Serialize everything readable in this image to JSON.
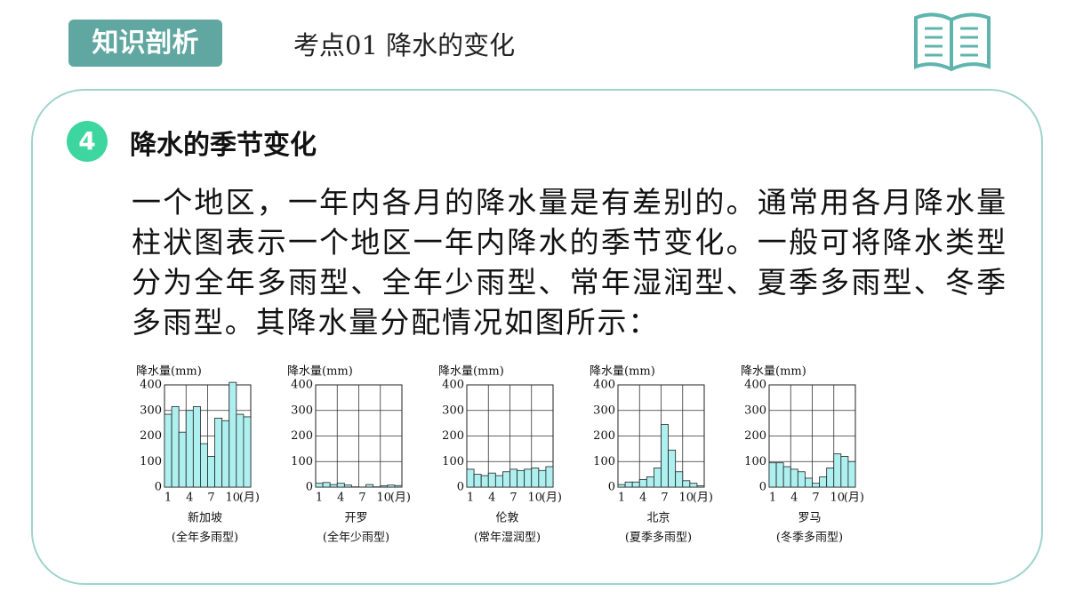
{
  "header": {
    "badge": "知识剖析",
    "title": "考点01 降水的变化"
  },
  "section": {
    "number": "4",
    "heading": "降水的季节变化",
    "paragraph": "一个地区，一年内各月的降水量是有差别的。通常用各月降水量柱状图表示一个地区一年内降水的季节变化。一般可将降水类型分为全年多雨型、全年少雨型、常年湿润型、夏季多雨型、冬季多雨型。其降水量分配情况如图所示："
  },
  "chart_data": [
    {
      "type": "bar",
      "y_label": "降水量(mm)",
      "x_unit": "(月)",
      "name": "新加坡",
      "subtitle": "(全年多雨型)",
      "categories": [
        1,
        null,
        null,
        4,
        null,
        null,
        7,
        null,
        null,
        10,
        null,
        null
      ],
      "values": [
        285,
        315,
        215,
        300,
        315,
        170,
        120,
        270,
        260,
        410,
        285,
        275
      ],
      "color": "#aef0f0",
      "ylim": [
        0,
        400
      ],
      "yticks": [
        0,
        100,
        200,
        300,
        400
      ],
      "grid": true
    },
    {
      "type": "bar",
      "y_label": "降水量(mm)",
      "x_unit": "(月)",
      "name": "开罗",
      "subtitle": "(全年少雨型)",
      "categories": [
        1,
        null,
        null,
        4,
        null,
        null,
        7,
        null,
        null,
        10,
        null,
        null
      ],
      "values": [
        15,
        18,
        10,
        15,
        8,
        1,
        0,
        10,
        1,
        5,
        8,
        6
      ],
      "color": "#aef0f0",
      "ylim": [
        0,
        400
      ],
      "yticks": [
        0,
        100,
        200,
        300,
        400
      ],
      "grid": true
    },
    {
      "type": "bar",
      "y_label": "降水量(mm)",
      "x_unit": "(月)",
      "name": "伦敦",
      "subtitle": "(常年湿润型)",
      "categories": [
        1,
        null,
        null,
        4,
        null,
        null,
        7,
        null,
        null,
        10,
        null,
        null
      ],
      "values": [
        70,
        50,
        45,
        55,
        45,
        60,
        70,
        65,
        70,
        75,
        65,
        80
      ],
      "color": "#aef0f0",
      "ylim": [
        0,
        400
      ],
      "yticks": [
        0,
        100,
        200,
        300,
        400
      ],
      "grid": true
    },
    {
      "type": "bar",
      "y_label": "降水量(mm)",
      "x_unit": "(月)",
      "name": "北京",
      "subtitle": "(夏季多雨型)",
      "categories": [
        1,
        null,
        null,
        4,
        null,
        null,
        7,
        null,
        null,
        10,
        null,
        null
      ],
      "values": [
        10,
        20,
        20,
        30,
        40,
        75,
        245,
        145,
        60,
        25,
        15,
        5
      ],
      "color": "#aef0f0",
      "ylim": [
        0,
        400
      ],
      "yticks": [
        0,
        100,
        200,
        300,
        400
      ],
      "grid": true
    },
    {
      "type": "bar",
      "y_label": "降水量(mm)",
      "x_unit": "(月)",
      "name": "罗马",
      "subtitle": "(冬季多雨型)",
      "categories": [
        1,
        null,
        null,
        4,
        null,
        null,
        7,
        null,
        null,
        10,
        null,
        null
      ],
      "values": [
        95,
        95,
        80,
        70,
        60,
        35,
        15,
        40,
        75,
        130,
        120,
        100
      ],
      "color": "#aef0f0",
      "ylim": [
        0,
        400
      ],
      "yticks": [
        0,
        100,
        200,
        300,
        400
      ],
      "grid": true
    }
  ]
}
